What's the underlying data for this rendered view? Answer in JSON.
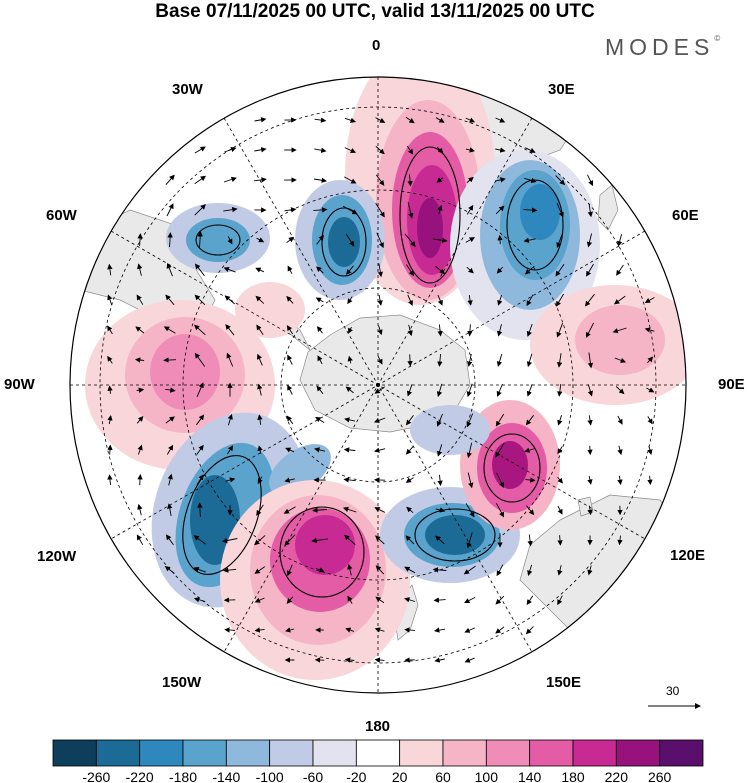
{
  "title": "Base 07/11/2025 00 UTC, valid 13/11/2025 00 UTC",
  "brand": "MODES",
  "brand_mark": "©",
  "longitude_labels": {
    "lon_0": "0",
    "lon_30e": "30E",
    "lon_60e": "60E",
    "lon_90e": "90E",
    "lon_120e": "120E",
    "lon_150e": "150E",
    "lon_180": "180",
    "lon_150w": "150W",
    "lon_120w": "120W",
    "lon_90w": "90W",
    "lon_60w": "60W",
    "lon_30w": "30W"
  },
  "reference_vector_label": "30",
  "colorbar": {
    "tick_labels": [
      "-260",
      "-220",
      "-180",
      "-140",
      "-100",
      "-60",
      "-20",
      "20",
      "60",
      "100",
      "140",
      "180",
      "220",
      "260"
    ],
    "colors": [
      "#0d3f5c",
      "#1b6b96",
      "#2f88bd",
      "#5aa3cc",
      "#8fb9dc",
      "#c1cbe6",
      "#e3e3f0",
      "#ffffff",
      "#f8d6da",
      "#f5b5c7",
      "#ef8db8",
      "#e45ca6",
      "#c72a92",
      "#98127d",
      "#5a0f6c"
    ]
  },
  "anomalies": [
    {
      "kind": "positive",
      "level": "strong",
      "color": "#a8167f"
    },
    {
      "kind": "positive",
      "level": "moderate",
      "color": "#e45ca6"
    },
    {
      "kind": "negative",
      "level": "strong",
      "color": "#1b6b96"
    },
    {
      "kind": "negative",
      "level": "moderate",
      "color": "#5aa3cc"
    }
  ],
  "land_color": "#e9e9e9",
  "coast_color": "#8a8a8a"
}
